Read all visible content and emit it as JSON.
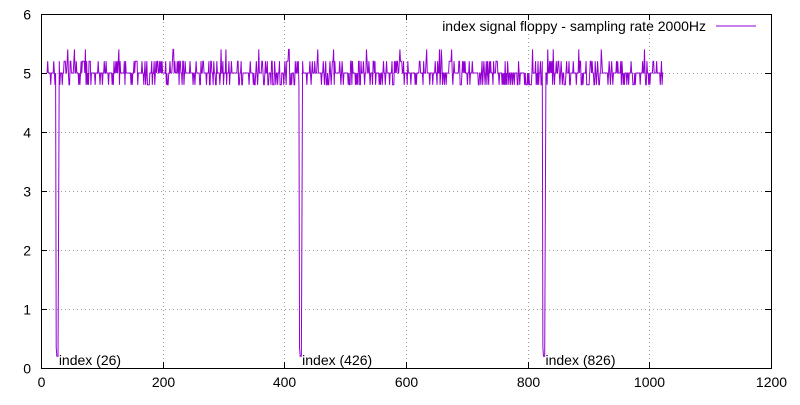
{
  "chart_data": {
    "type": "line",
    "title": "",
    "xlabel": "",
    "ylabel": "",
    "xlim": [
      0,
      1200
    ],
    "ylim": [
      0,
      6
    ],
    "xticks": [
      "0",
      "200",
      "400",
      "600",
      "800",
      "1000",
      "1200"
    ],
    "yticks": [
      "0",
      "1",
      "2",
      "3",
      "4",
      "5",
      "6"
    ],
    "grid": true,
    "legend_position": "top-right",
    "series": [
      {
        "name": "index signal floppy - sampling rate 2000Hz",
        "color": "#9400d3",
        "baseline": 5.0,
        "noise_levels": [
          4.8,
          5.2
        ],
        "sample_range": [
          10,
          1023
        ],
        "pulse_width_samples": 4,
        "dips": [
          {
            "x": 26,
            "y": 0.2
          },
          {
            "x": 426,
            "y": 0.2
          },
          {
            "x": 826,
            "y": 0.2
          }
        ]
      }
    ],
    "annotations": [
      {
        "text": "index (26)",
        "x": 26,
        "y": 0.1
      },
      {
        "text": "index (426)",
        "x": 426,
        "y": 0.1
      },
      {
        "text": "index (826)",
        "x": 826,
        "y": 0.1
      }
    ]
  }
}
